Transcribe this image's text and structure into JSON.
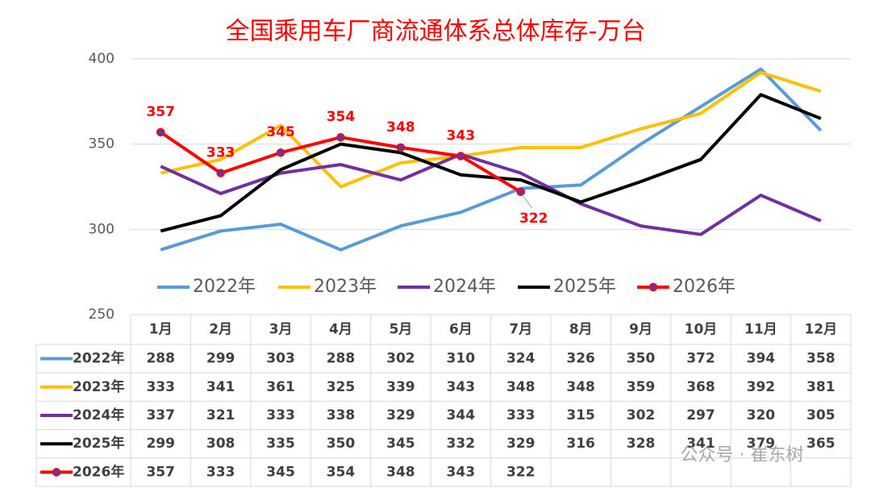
{
  "chart_data": {
    "type": "line",
    "title": "全国乘用车厂商流通体系总体库存-万台",
    "categories": [
      "1月",
      "2月",
      "3月",
      "4月",
      "5月",
      "6月",
      "7月",
      "8月",
      "9月",
      "10月",
      "11月",
      "12月"
    ],
    "series": [
      {
        "name": "2022年",
        "color": "#5b9bd5",
        "values": [
          288,
          299,
          303,
          288,
          302,
          310,
          324,
          326,
          350,
          372,
          394,
          358
        ]
      },
      {
        "name": "2023年",
        "color": "#ffc000",
        "values": [
          333,
          341,
          361,
          325,
          339,
          343,
          348,
          348,
          359,
          368,
          392,
          381
        ]
      },
      {
        "name": "2024年",
        "color": "#7030a0",
        "values": [
          337,
          321,
          333,
          338,
          329,
          344,
          333,
          315,
          302,
          297,
          320,
          305
        ]
      },
      {
        "name": "2025年",
        "color": "#000000",
        "values": [
          299,
          308,
          335,
          350,
          345,
          332,
          329,
          316,
          328,
          341,
          379,
          365
        ]
      },
      {
        "name": "2026年",
        "color": "#ff0000",
        "marker_color": "#7030a0",
        "data_labels": true,
        "values": [
          357,
          333,
          345,
          354,
          348,
          343,
          322,
          null,
          null,
          null,
          null,
          null
        ]
      }
    ],
    "ylim": [
      250,
      400
    ],
    "yticks": [
      250,
      300,
      350,
      400
    ],
    "grid": true,
    "legend": "bottom",
    "data_table": true
  },
  "watermark": "公众号 · 崔东树"
}
